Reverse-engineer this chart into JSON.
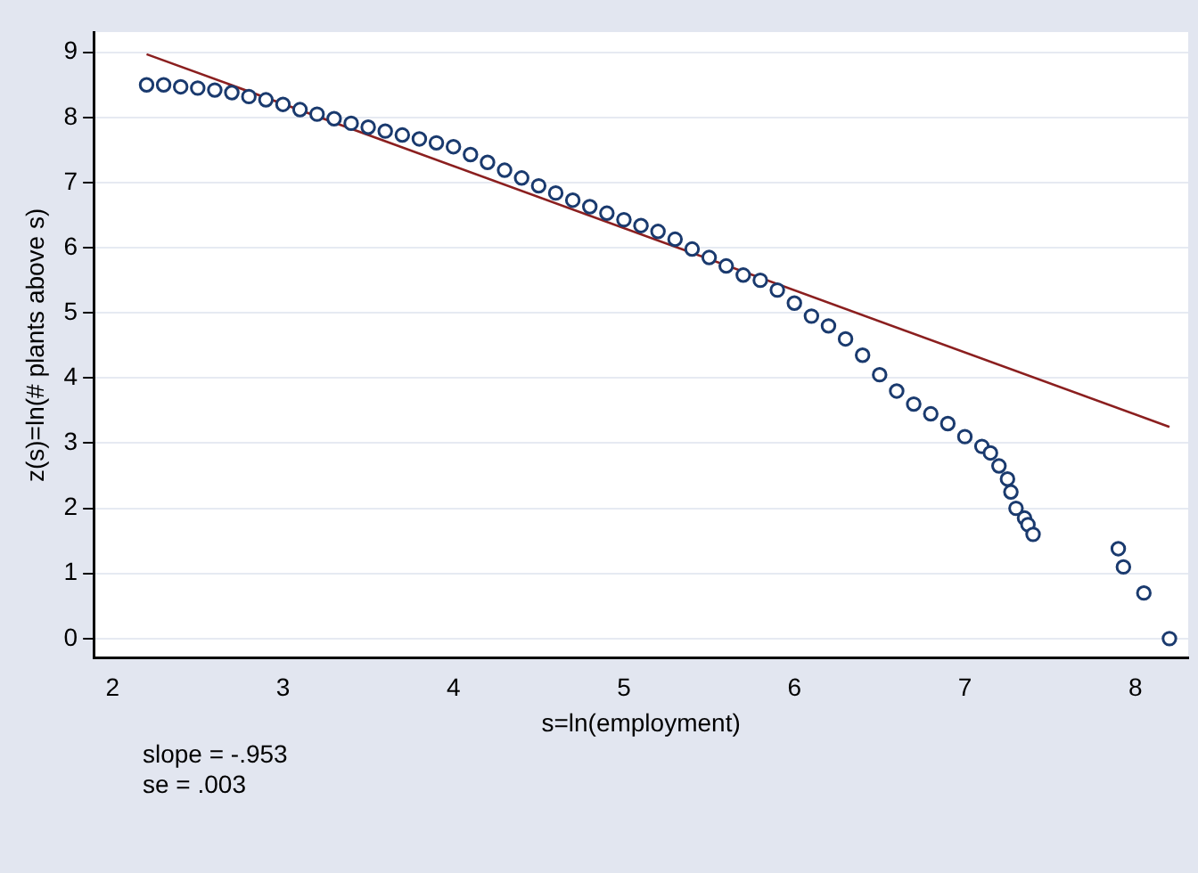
{
  "chart_data": {
    "type": "scatter",
    "xlabel": "s=ln(employment)",
    "ylabel": "z(s)=ln(# plants above s)",
    "annotations": [
      "slope = -.953",
      "se = .003"
    ],
    "xlim": [
      1.89,
      8.31
    ],
    "ylim": [
      -0.3,
      9.31
    ],
    "xticks": [
      2,
      3,
      4,
      5,
      6,
      7,
      8
    ],
    "yticks": [
      0,
      1,
      2,
      3,
      4,
      5,
      6,
      7,
      8,
      9
    ],
    "grid": "y",
    "series": [
      {
        "color": "#1a3a6e",
        "marker": "circle",
        "x": [
          2.2,
          2.3,
          2.4,
          2.5,
          2.6,
          2.7,
          2.8,
          2.9,
          3.0,
          3.1,
          3.2,
          3.3,
          3.4,
          3.5,
          3.6,
          3.7,
          3.8,
          3.9,
          4.0,
          4.1,
          4.2,
          4.3,
          4.4,
          4.5,
          4.6,
          4.7,
          4.8,
          4.9,
          5.0,
          5.1,
          5.2,
          5.3,
          5.4,
          5.5,
          5.6,
          5.7,
          5.8,
          5.9,
          6.0,
          6.1,
          6.2,
          6.3,
          6.4,
          6.5,
          6.6,
          6.7,
          6.8,
          6.9,
          7.0,
          7.1,
          7.15,
          7.2,
          7.25,
          7.27,
          7.3,
          7.35,
          7.37,
          7.4,
          7.9,
          7.93,
          8.05,
          8.2
        ],
        "values": [
          8.5,
          8.5,
          8.47,
          8.45,
          8.42,
          8.38,
          8.32,
          8.27,
          8.2,
          8.12,
          8.05,
          7.98,
          7.91,
          7.85,
          7.79,
          7.73,
          7.67,
          7.61,
          7.55,
          7.43,
          7.31,
          7.19,
          7.07,
          6.95,
          6.84,
          6.73,
          6.63,
          6.53,
          6.43,
          6.34,
          6.25,
          6.13,
          5.98,
          5.85,
          5.72,
          5.58,
          5.5,
          5.35,
          5.15,
          4.95,
          4.8,
          4.6,
          4.35,
          4.05,
          3.8,
          3.6,
          3.45,
          3.3,
          3.1,
          2.95,
          2.85,
          2.65,
          2.45,
          2.25,
          2.0,
          1.85,
          1.75,
          1.6,
          1.38,
          1.1,
          0.7,
          0
        ]
      },
      {
        "type": "line",
        "color": "#8b1f1f",
        "marker": "none",
        "x": [
          2.2,
          8.2
        ],
        "values": [
          8.97,
          3.25
        ]
      }
    ]
  }
}
